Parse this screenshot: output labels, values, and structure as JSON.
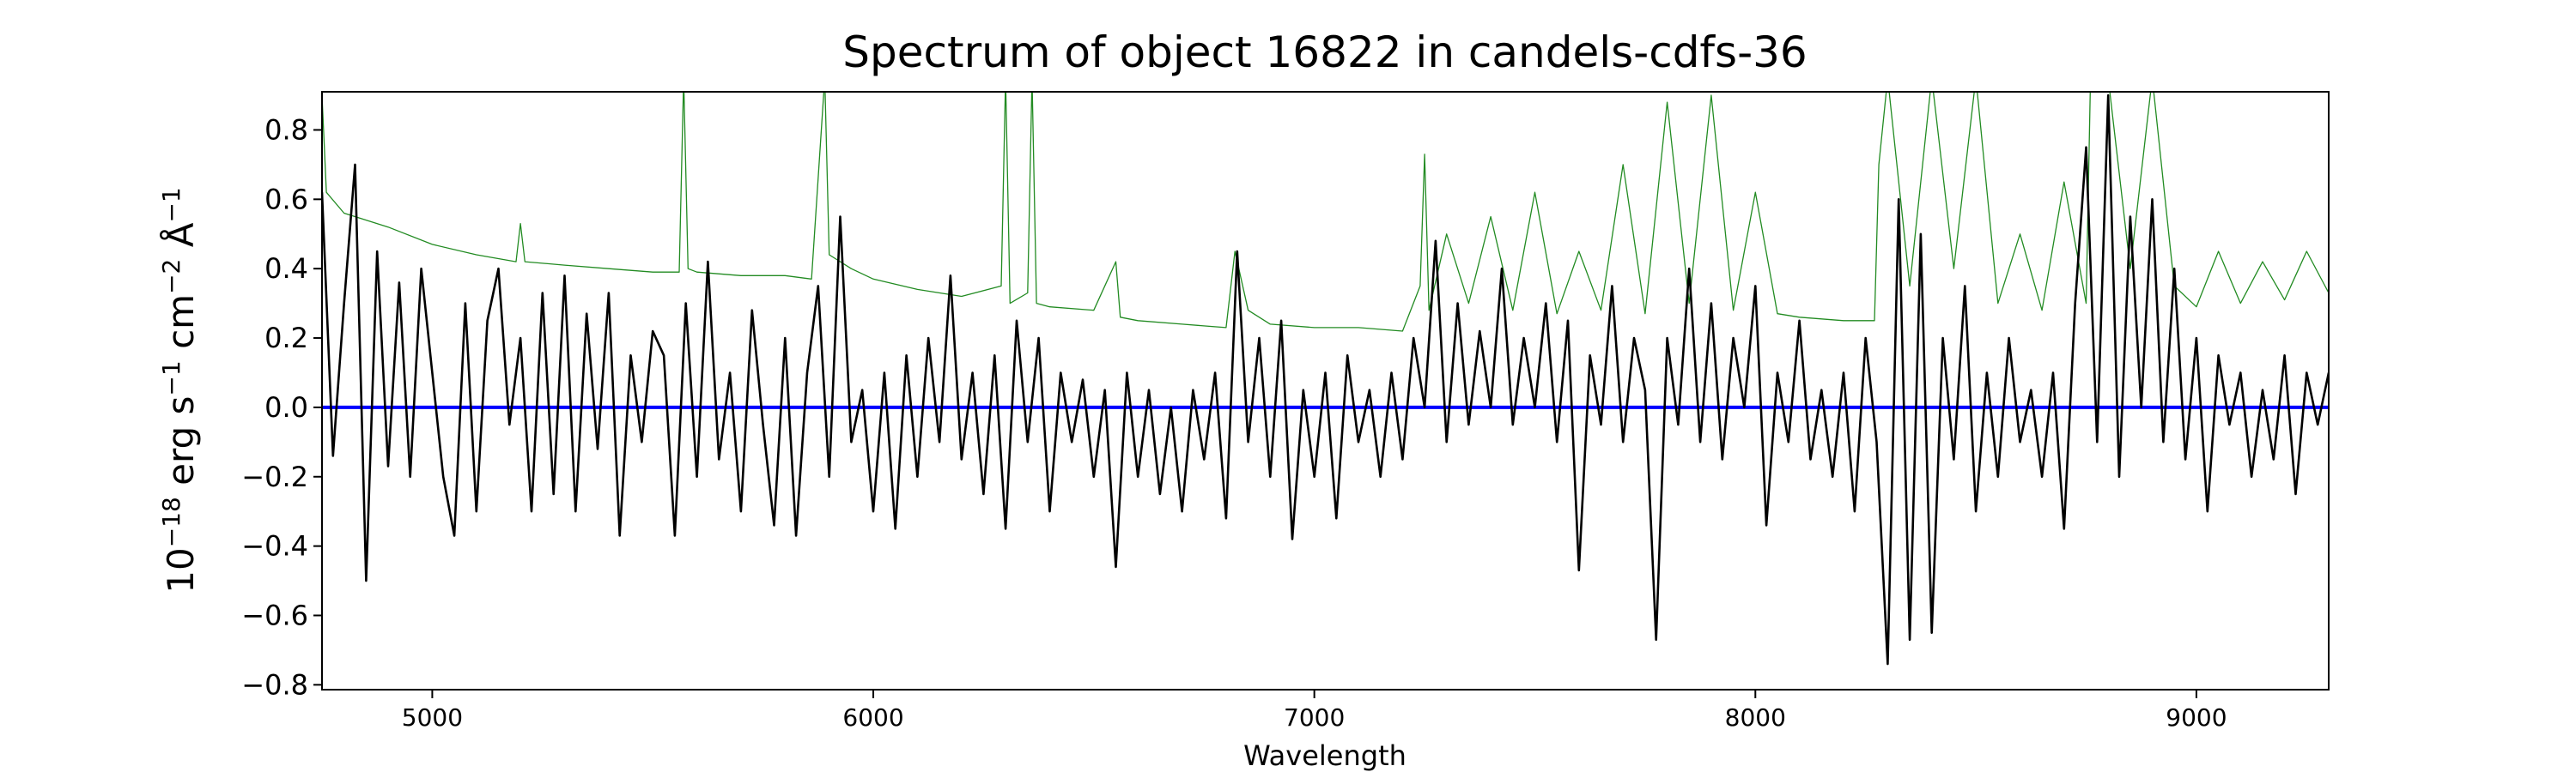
{
  "chart_data": {
    "type": "line",
    "title": "Spectrum of object 16822 in candels-cdfs-36",
    "xlabel": "Wavelength",
    "ylabel": {
      "base": "10",
      "exp1": "−18",
      "t1": " erg s",
      "exp2": "−1",
      "t2": " cm",
      "exp3": "−2",
      "t3": " Å",
      "exp4": "−1"
    },
    "xlim": [
      4750,
      9300
    ],
    "ylim": [
      -0.814,
      0.91
    ],
    "xticks": [
      5000,
      6000,
      7000,
      8000,
      9000
    ],
    "yticks": [
      -0.8,
      -0.6,
      -0.4,
      -0.2,
      0.0,
      0.2,
      0.4,
      0.6,
      0.8
    ],
    "ytick_labels": [
      "−0.8",
      "−0.6",
      "−0.4",
      "−0.2",
      "0.0",
      "0.2",
      "0.4",
      "0.6",
      "0.8"
    ],
    "grid": false,
    "series": [
      {
        "color": "#228b22",
        "x": [
          4750,
          4760,
          4800,
          4900,
          5000,
          5100,
          5190,
          5200,
          5210,
          5300,
          5400,
          5500,
          5560,
          5570,
          5580,
          5600,
          5700,
          5800,
          5860,
          5890,
          5900,
          5950,
          6000,
          6100,
          6200,
          6290,
          6300,
          6310,
          6350,
          6360,
          6370,
          6400,
          6500,
          6550,
          6560,
          6600,
          6700,
          6800,
          6820,
          6850,
          6900,
          7000,
          7100,
          7200,
          7240,
          7250,
          7260,
          7300,
          7350,
          7400,
          7450,
          7500,
          7550,
          7600,
          7650,
          7700,
          7750,
          7800,
          7850,
          7900,
          7950,
          8000,
          8050,
          8100,
          8200,
          8270,
          8280,
          8300,
          8350,
          8400,
          8450,
          8500,
          8550,
          8600,
          8650,
          8700,
          8750,
          8760,
          8800,
          8850,
          8900,
          8950,
          9000,
          9050,
          9100,
          9150,
          9200,
          9250,
          9300
        ],
        "y": [
          0.9,
          0.62,
          0.56,
          0.52,
          0.47,
          0.44,
          0.42,
          0.53,
          0.42,
          0.41,
          0.4,
          0.39,
          0.39,
          0.95,
          0.4,
          0.39,
          0.38,
          0.38,
          0.37,
          0.95,
          0.44,
          0.4,
          0.37,
          0.34,
          0.32,
          0.35,
          0.95,
          0.3,
          0.33,
          0.95,
          0.3,
          0.29,
          0.28,
          0.42,
          0.26,
          0.25,
          0.24,
          0.23,
          0.45,
          0.28,
          0.24,
          0.23,
          0.23,
          0.22,
          0.35,
          0.73,
          0.28,
          0.5,
          0.3,
          0.55,
          0.28,
          0.62,
          0.27,
          0.45,
          0.28,
          0.7,
          0.27,
          0.88,
          0.3,
          0.9,
          0.28,
          0.62,
          0.27,
          0.26,
          0.25,
          0.25,
          0.7,
          0.95,
          0.35,
          0.95,
          0.4,
          0.95,
          0.3,
          0.5,
          0.28,
          0.65,
          0.3,
          0.95,
          0.95,
          0.4,
          0.95,
          0.35,
          0.29,
          0.45,
          0.3,
          0.42,
          0.31,
          0.45,
          0.33
        ]
      },
      {
        "color": "#0000ff",
        "x": [
          4750,
          9300
        ],
        "y": [
          0.0,
          0.0
        ]
      },
      {
        "color": "#000000",
        "x_start": 4750,
        "x_step": 25,
        "y": [
          0.62,
          -0.14,
          0.3,
          0.7,
          -0.5,
          0.45,
          -0.17,
          0.36,
          -0.2,
          0.4,
          0.1,
          -0.2,
          -0.37,
          0.3,
          -0.3,
          0.25,
          0.4,
          -0.05,
          0.2,
          -0.3,
          0.33,
          -0.25,
          0.38,
          -0.3,
          0.27,
          -0.12,
          0.33,
          -0.37,
          0.15,
          -0.1,
          0.22,
          0.15,
          -0.37,
          0.3,
          -0.2,
          0.42,
          -0.15,
          0.1,
          -0.3,
          0.28,
          -0.05,
          -0.34,
          0.2,
          -0.37,
          0.1,
          0.35,
          -0.2,
          0.55,
          -0.1,
          0.05,
          -0.3,
          0.1,
          -0.35,
          0.15,
          -0.2,
          0.2,
          -0.1,
          0.38,
          -0.15,
          0.1,
          -0.25,
          0.15,
          -0.35,
          0.25,
          -0.1,
          0.2,
          -0.3,
          0.1,
          -0.1,
          0.08,
          -0.2,
          0.05,
          -0.46,
          0.1,
          -0.2,
          0.05,
          -0.25,
          0.0,
          -0.3,
          0.05,
          -0.15,
          0.1,
          -0.32,
          0.45,
          -0.1,
          0.2,
          -0.2,
          0.25,
          -0.38,
          0.05,
          -0.2,
          0.1,
          -0.32,
          0.15,
          -0.1,
          0.05,
          -0.2,
          0.1,
          -0.15,
          0.2,
          0.0,
          0.48,
          -0.1,
          0.3,
          -0.05,
          0.22,
          0.0,
          0.4,
          -0.05,
          0.2,
          0.0,
          0.3,
          -0.1,
          0.25,
          -0.47,
          0.15,
          -0.05,
          0.35,
          -0.1,
          0.2,
          0.05,
          -0.67,
          0.2,
          -0.05,
          0.4,
          -0.1,
          0.3,
          -0.15,
          0.2,
          0.0,
          0.35,
          -0.34,
          0.1,
          -0.1,
          0.25,
          -0.15,
          0.05,
          -0.2,
          0.1,
          -0.3,
          0.2,
          -0.1,
          -0.74,
          0.6,
          -0.67,
          0.5,
          -0.65,
          0.2,
          -0.15,
          0.35,
          -0.3,
          0.1,
          -0.2,
          0.2,
          -0.1,
          0.05,
          -0.2,
          0.1,
          -0.35,
          0.3,
          0.75,
          -0.1,
          0.9,
          -0.2,
          0.55,
          0.0,
          0.6,
          -0.1,
          0.4,
          -0.15,
          0.2,
          -0.3,
          0.15,
          -0.05,
          0.1,
          -0.2,
          0.05,
          -0.15,
          0.15,
          -0.25,
          0.1,
          -0.05,
          0.1
        ]
      }
    ]
  }
}
